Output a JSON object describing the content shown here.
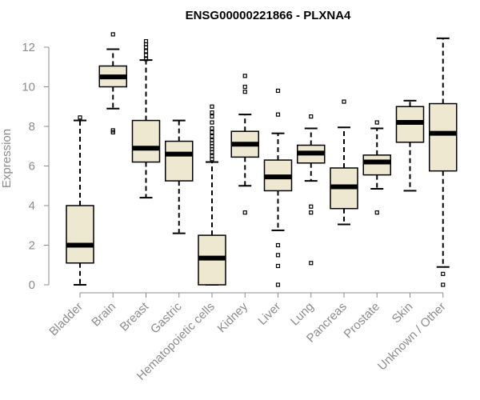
{
  "chart_data": {
    "type": "boxplot",
    "title": "ENSG00000221866 - PLXNA4",
    "xlabel": "",
    "ylabel": "Expression",
    "ylim": [
      0,
      12.5
    ],
    "yticks": [
      0,
      2,
      4,
      6,
      8,
      10,
      12
    ],
    "box_fill": "#efe8d1",
    "box_stroke": "#000000",
    "categories": [
      "Bladder",
      "Brain",
      "Breast",
      "Gastric",
      "Hematopoietic cells",
      "Kidney",
      "Liver",
      "Lung",
      "Pancreas",
      "Prostate",
      "Skin",
      "Unknown / Other"
    ],
    "boxes": [
      {
        "category": "Bladder",
        "whisker_low": 0.0,
        "q1": 1.1,
        "median": 2.0,
        "q3": 4.0,
        "whisker_high": 8.3,
        "outliers": [
          8.45
        ]
      },
      {
        "category": "Brain",
        "whisker_low": 8.9,
        "q1": 10.0,
        "median": 10.5,
        "q3": 11.05,
        "whisker_high": 11.9,
        "outliers": [
          12.65,
          7.8,
          7.7
        ]
      },
      {
        "category": "Breast",
        "whisker_low": 4.4,
        "q1": 6.2,
        "median": 6.9,
        "q3": 8.3,
        "whisker_high": 11.35,
        "outliers": [
          11.4,
          11.6,
          11.8,
          12.0,
          12.15,
          12.3
        ]
      },
      {
        "category": "Gastric",
        "whisker_low": 2.6,
        "q1": 5.25,
        "median": 6.6,
        "q3": 7.25,
        "whisker_high": 8.3,
        "outliers": []
      },
      {
        "category": "Hematopoietic cells",
        "whisker_low": 0.0,
        "q1": 0.0,
        "median": 1.35,
        "q3": 2.5,
        "whisker_high": 6.2,
        "outliers": [
          6.35,
          6.5,
          6.7,
          6.85,
          7.0,
          7.15,
          7.3,
          7.5,
          7.7,
          7.9,
          8.2,
          8.5,
          8.7,
          9.0
        ]
      },
      {
        "category": "Kidney",
        "whisker_low": 5.0,
        "q1": 6.45,
        "median": 7.1,
        "q3": 7.75,
        "whisker_high": 8.6,
        "outliers": [
          9.75,
          10.0,
          10.55,
          3.65
        ]
      },
      {
        "category": "Liver",
        "whisker_low": 2.75,
        "q1": 4.75,
        "median": 5.45,
        "q3": 6.3,
        "whisker_high": 7.65,
        "outliers": [
          9.8,
          8.6,
          2.0,
          1.5,
          0.95,
          0.0
        ]
      },
      {
        "category": "Lung",
        "whisker_low": 5.25,
        "q1": 6.15,
        "median": 6.65,
        "q3": 7.05,
        "whisker_high": 7.9,
        "outliers": [
          8.5,
          3.95,
          3.65,
          1.1
        ]
      },
      {
        "category": "Pancreas",
        "whisker_low": 3.05,
        "q1": 3.85,
        "median": 4.95,
        "q3": 5.9,
        "whisker_high": 7.95,
        "outliers": [
          9.25
        ]
      },
      {
        "category": "Prostate",
        "whisker_low": 4.85,
        "q1": 5.55,
        "median": 6.2,
        "q3": 6.55,
        "whisker_high": 7.9,
        "outliers": [
          8.2,
          3.65
        ]
      },
      {
        "category": "Skin",
        "whisker_low": 4.75,
        "q1": 7.2,
        "median": 8.2,
        "q3": 9.0,
        "whisker_high": 9.3,
        "outliers": []
      },
      {
        "category": "Unknown / Other",
        "whisker_low": 0.9,
        "q1": 5.75,
        "median": 7.65,
        "q3": 9.15,
        "whisker_high": 12.45,
        "outliers": [
          0.55,
          0.0
        ]
      }
    ]
  }
}
